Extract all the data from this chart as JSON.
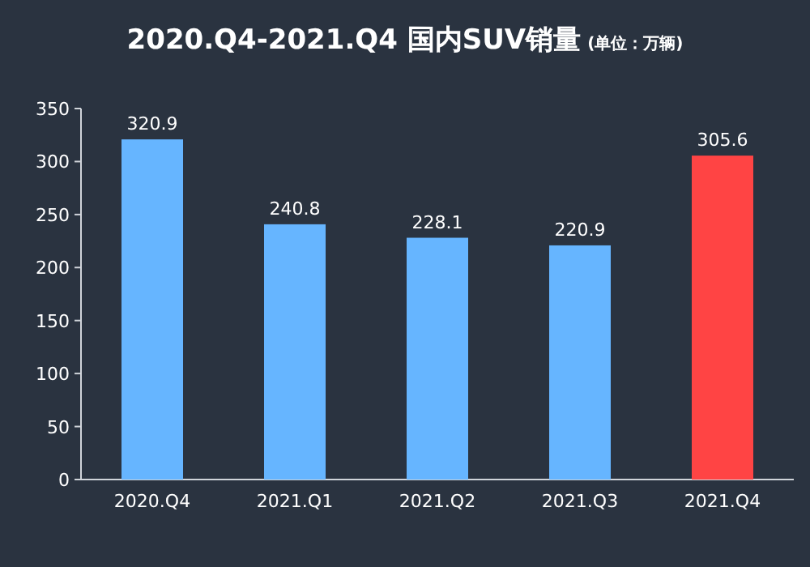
{
  "chart_data": {
    "type": "bar",
    "title": "2020.Q4-2021.Q4 国内SUV销量",
    "subtitle": "(单位：万辆)",
    "categories": [
      "2020.Q4",
      "2021.Q1",
      "2021.Q2",
      "2021.Q3",
      "2021.Q4"
    ],
    "values": [
      320.9,
      240.8,
      228.1,
      220.9,
      305.6
    ],
    "colors": [
      "#66b5ff",
      "#66b5ff",
      "#66b5ff",
      "#66b5ff",
      "#ff4444"
    ],
    "ylim": [
      0,
      350
    ],
    "yticks": [
      0,
      50,
      100,
      150,
      200,
      250,
      300,
      350
    ],
    "data_labels": true
  }
}
